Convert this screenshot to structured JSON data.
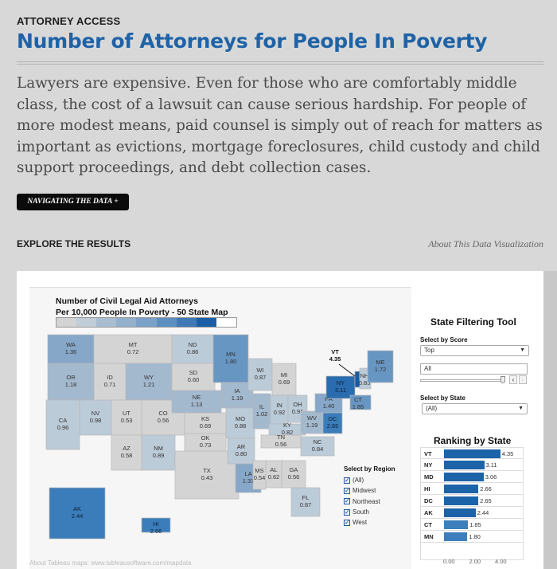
{
  "header": {
    "kicker": "ATTORNEY ACCESS",
    "title": "Number of Attorneys for People In Poverty",
    "lede": "Lawyers are expensive. Even for those who are comfortably middle class, the cost of a lawsuit can cause serious hardship. For people of more modest means, paid counsel is simply out of reach for matters as important as evictions, mortgage foreclosures, child custody and child support proceedings, and debt collection cases.",
    "nav_button": "NAVIGATING THE DATA +"
  },
  "section": {
    "title": "EXPLORE THE RESULTS",
    "about_link": "About This Data Visualization"
  },
  "map": {
    "title_line1": "Number of Civil Legal Aid Attorneys",
    "title_line2": "Per 10,000 People In Poverty - 50 State Map",
    "legend_colors": [
      "#d3d3d3",
      "#c0ccd6",
      "#a9bdd0",
      "#94b0cc",
      "#7ba1c8",
      "#5e8fc1",
      "#3f79b6",
      "#1a5fa6",
      "#ffffff"
    ],
    "credit": "About Tableau maps: www.tableausoftware.com/mapdata",
    "states": [
      {
        "abbr": "WA",
        "value": "1.36"
      },
      {
        "abbr": "OR",
        "value": "1.18"
      },
      {
        "abbr": "CA",
        "value": "0.96"
      },
      {
        "abbr": "NV",
        "value": "0.98"
      },
      {
        "abbr": "ID",
        "value": "0.71"
      },
      {
        "abbr": "MT",
        "value": "0.72"
      },
      {
        "abbr": "WY",
        "value": "1.21"
      },
      {
        "abbr": "UT",
        "value": "0.53"
      },
      {
        "abbr": "CO",
        "value": "0.56"
      },
      {
        "abbr": "AZ",
        "value": "0.58"
      },
      {
        "abbr": "NM",
        "value": "0.89"
      },
      {
        "abbr": "ND",
        "value": "0.86"
      },
      {
        "abbr": "SD",
        "value": "0.60"
      },
      {
        "abbr": "NE",
        "value": "1.13"
      },
      {
        "abbr": "KS",
        "value": "0.69"
      },
      {
        "abbr": "OK",
        "value": "0.73"
      },
      {
        "abbr": "TX",
        "value": "0.43"
      },
      {
        "abbr": "MN",
        "value": "1.80"
      },
      {
        "abbr": "IA",
        "value": "1.19"
      },
      {
        "abbr": "MO",
        "value": "0.88"
      },
      {
        "abbr": "AR",
        "value": "0.80"
      },
      {
        "abbr": "LA",
        "value": "1.37"
      },
      {
        "abbr": "WI",
        "value": "0.87"
      },
      {
        "abbr": "MI",
        "value": "0.69"
      },
      {
        "abbr": "IL",
        "value": "1.02"
      },
      {
        "abbr": "IN",
        "value": "0.92"
      },
      {
        "abbr": "OH",
        "value": "0.91"
      },
      {
        "abbr": "KY",
        "value": "0.82"
      },
      {
        "abbr": "TN",
        "value": "0.56"
      },
      {
        "abbr": "MS",
        "value": "0.54"
      },
      {
        "abbr": "AL",
        "value": "0.62"
      },
      {
        "abbr": "GA",
        "value": "0.56"
      },
      {
        "abbr": "FL",
        "value": "0.87"
      },
      {
        "abbr": "NC",
        "value": "0.84"
      },
      {
        "abbr": "WV",
        "value": "1.19"
      },
      {
        "abbr": "PA",
        "value": "1.40"
      },
      {
        "abbr": "NY",
        "value": "3.11"
      },
      {
        "abbr": "DC",
        "value": "2.65"
      },
      {
        "abbr": "VT",
        "value": "4.35"
      },
      {
        "abbr": "NH",
        "value": "0.85"
      },
      {
        "abbr": "ME",
        "value": "1.72"
      },
      {
        "abbr": "CT",
        "value": "1.85"
      },
      {
        "abbr": "AK",
        "value": "2.44"
      },
      {
        "abbr": "HI",
        "value": "2.66"
      }
    ]
  },
  "filter": {
    "title": "State Filtering Tool",
    "score_label": "Select by Score",
    "score_value": "Top",
    "range_value": "All",
    "state_label": "Select by State",
    "state_value": "(All)",
    "region_label": "Select by Region",
    "regions": [
      "(All)",
      "Midwest",
      "Northeast",
      "South",
      "West"
    ]
  },
  "ranking": {
    "title": "Ranking by State",
    "rows": [
      {
        "state": "VT",
        "value": 4.35
      },
      {
        "state": "NY",
        "value": 3.11
      },
      {
        "state": "MD",
        "value": 3.06
      },
      {
        "state": "HI",
        "value": 2.66
      },
      {
        "state": "DC",
        "value": 2.65
      },
      {
        "state": "AK",
        "value": 2.44
      },
      {
        "state": "CT",
        "value": 1.85
      },
      {
        "state": "MN",
        "value": 1.8
      }
    ],
    "axis_ticks": [
      "0.00",
      "2.00",
      "4.00"
    ]
  }
}
